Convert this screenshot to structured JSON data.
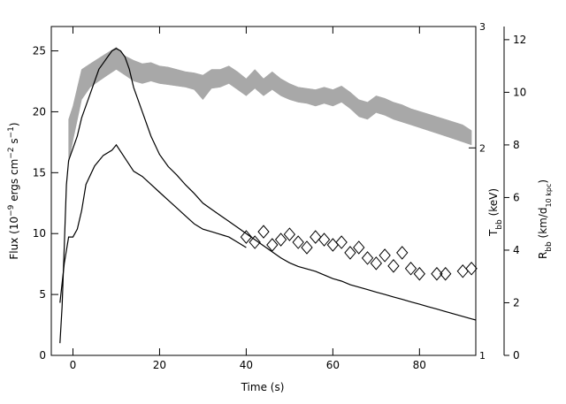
{
  "chart_data": {
    "type": "line",
    "title": "",
    "xlabel": "Time (s)",
    "ylabel": {
      "main": "Flux (10",
      "exp1": "−9",
      "mid1": " ergs cm",
      "exp2": "−2",
      "mid2": " s",
      "exp3": "−1",
      "end": ")"
    },
    "right_label_1": {
      "main": "T",
      "sub": "bb",
      "end": " (keV)"
    },
    "right_label_2": {
      "main": "R",
      "sub": "bb",
      "mid": " (km/d",
      "sub2": "10 kpc",
      "end": ")"
    },
    "xlim": [
      -5,
      93
    ],
    "ylim": [
      0,
      27
    ],
    "x_ticks": [
      0,
      20,
      40,
      60,
      80
    ],
    "y_ticks": [
      0,
      5,
      10,
      15,
      20,
      25
    ],
    "temp_axis": {
      "scale": "log",
      "range": [
        1,
        3
      ],
      "ticks": [
        1,
        2,
        3
      ]
    },
    "radius_axis": {
      "scale": "linear",
      "range": [
        0,
        12.5
      ],
      "ticks": [
        0,
        2,
        4,
        6,
        8,
        10,
        12
      ]
    },
    "series": [
      {
        "kind": "flux",
        "color": "#000000",
        "points": [
          [
            -3,
            1.0
          ],
          [
            -2.5,
            4
          ],
          [
            -2,
            9
          ],
          [
            -1.5,
            14
          ],
          [
            -1,
            16
          ],
          [
            0,
            17
          ],
          [
            1,
            18
          ],
          [
            2,
            19.5
          ],
          [
            3,
            20.5
          ],
          [
            4,
            21.5
          ],
          [
            5,
            22.5
          ],
          [
            6,
            23.5
          ],
          [
            7,
            24
          ],
          [
            8,
            24.5
          ],
          [
            9,
            25
          ],
          [
            10,
            25.2
          ],
          [
            11,
            25
          ],
          [
            12,
            24.5
          ],
          [
            13,
            23.5
          ],
          [
            14,
            22
          ],
          [
            15,
            21
          ],
          [
            16,
            20
          ],
          [
            18,
            18
          ],
          [
            20,
            16.5
          ],
          [
            22,
            15.5
          ],
          [
            24,
            14.8
          ],
          [
            26,
            14
          ],
          [
            28,
            13.3
          ],
          [
            30,
            12.5
          ],
          [
            32,
            12
          ],
          [
            34,
            11.5
          ],
          [
            36,
            11
          ],
          [
            38,
            10.5
          ],
          [
            40,
            10
          ],
          [
            42,
            9.5
          ],
          [
            44,
            9
          ],
          [
            46,
            8.5
          ],
          [
            48,
            8
          ],
          [
            50,
            7.6
          ],
          [
            52,
            7.3
          ],
          [
            54,
            7.1
          ],
          [
            56,
            6.9
          ],
          [
            58,
            6.6
          ],
          [
            60,
            6.3
          ],
          [
            62,
            6.1
          ],
          [
            64,
            5.8
          ],
          [
            66,
            5.6
          ],
          [
            68,
            5.4
          ],
          [
            70,
            5.2
          ],
          [
            72,
            5.0
          ],
          [
            74,
            4.8
          ],
          [
            76,
            4.6
          ],
          [
            78,
            4.4
          ],
          [
            80,
            4.2
          ],
          [
            82,
            4.0
          ],
          [
            84,
            3.8
          ],
          [
            86,
            3.6
          ],
          [
            88,
            3.4
          ],
          [
            90,
            3.2
          ],
          [
            92,
            3.0
          ],
          [
            93,
            2.9
          ]
        ]
      },
      {
        "kind": "radius",
        "color": "#000000",
        "points": [
          [
            -3,
            2
          ],
          [
            -2,
            3.5
          ],
          [
            -1,
            4.5
          ],
          [
            0,
            4.5
          ],
          [
            1,
            4.8
          ],
          [
            2,
            5.5
          ],
          [
            3,
            6.5
          ],
          [
            5,
            7.2
          ],
          [
            7,
            7.6
          ],
          [
            9,
            7.8
          ],
          [
            10,
            8
          ],
          [
            12,
            7.5
          ],
          [
            14,
            7
          ],
          [
            16,
            6.8
          ],
          [
            18,
            6.5
          ],
          [
            20,
            6.2
          ],
          [
            22,
            5.9
          ],
          [
            24,
            5.6
          ],
          [
            26,
            5.3
          ],
          [
            28,
            5.0
          ],
          [
            30,
            4.8
          ],
          [
            32,
            4.7
          ],
          [
            34,
            4.6
          ],
          [
            36,
            4.5
          ],
          [
            38,
            4.3
          ],
          [
            40,
            4.1
          ]
        ]
      },
      {
        "kind": "radius_diamonds",
        "color": "#000000",
        "points": [
          [
            40,
            4.5
          ],
          [
            42,
            4.3
          ],
          [
            44,
            4.7
          ],
          [
            46,
            4.2
          ],
          [
            48,
            4.4
          ],
          [
            50,
            4.6
          ],
          [
            52,
            4.3
          ],
          [
            54,
            4.1
          ],
          [
            56,
            4.5
          ],
          [
            58,
            4.4
          ],
          [
            60,
            4.2
          ],
          [
            62,
            4.3
          ],
          [
            64,
            3.9
          ],
          [
            66,
            4.1
          ],
          [
            68,
            3.7
          ],
          [
            70,
            3.5
          ],
          [
            72,
            3.8
          ],
          [
            74,
            3.4
          ],
          [
            76,
            3.9
          ],
          [
            78,
            3.3
          ],
          [
            80,
            3.1
          ],
          [
            84,
            3.1
          ],
          [
            86,
            3.1
          ],
          [
            90,
            3.2
          ],
          [
            92,
            3.3
          ]
        ]
      },
      {
        "kind": "temperature_band",
        "color": "#a8a8a8",
        "points": [
          [
            -1,
            1.9,
            2.2
          ],
          [
            0,
            2.05,
            2.3
          ],
          [
            2,
            2.35,
            2.6
          ],
          [
            4,
            2.45,
            2.65
          ],
          [
            6,
            2.5,
            2.7
          ],
          [
            8,
            2.55,
            2.75
          ],
          [
            10,
            2.6,
            2.8
          ],
          [
            12,
            2.55,
            2.72
          ],
          [
            14,
            2.5,
            2.68
          ],
          [
            16,
            2.48,
            2.65
          ],
          [
            18,
            2.5,
            2.66
          ],
          [
            20,
            2.48,
            2.63
          ],
          [
            22,
            2.47,
            2.62
          ],
          [
            24,
            2.46,
            2.6
          ],
          [
            26,
            2.45,
            2.58
          ],
          [
            28,
            2.43,
            2.57
          ],
          [
            30,
            2.35,
            2.55
          ],
          [
            32,
            2.44,
            2.6
          ],
          [
            34,
            2.45,
            2.6
          ],
          [
            36,
            2.48,
            2.63
          ],
          [
            38,
            2.43,
            2.58
          ],
          [
            40,
            2.38,
            2.52
          ],
          [
            42,
            2.44,
            2.6
          ],
          [
            44,
            2.38,
            2.52
          ],
          [
            46,
            2.43,
            2.58
          ],
          [
            48,
            2.38,
            2.52
          ],
          [
            50,
            2.35,
            2.48
          ],
          [
            52,
            2.33,
            2.45
          ],
          [
            54,
            2.32,
            2.44
          ],
          [
            56,
            2.3,
            2.43
          ],
          [
            58,
            2.32,
            2.45
          ],
          [
            60,
            2.3,
            2.43
          ],
          [
            62,
            2.33,
            2.46
          ],
          [
            64,
            2.28,
            2.41
          ],
          [
            66,
            2.22,
            2.35
          ],
          [
            68,
            2.2,
            2.33
          ],
          [
            70,
            2.25,
            2.38
          ],
          [
            72,
            2.23,
            2.36
          ],
          [
            74,
            2.2,
            2.33
          ],
          [
            76,
            2.18,
            2.31
          ],
          [
            78,
            2.16,
            2.28
          ],
          [
            80,
            2.14,
            2.26
          ],
          [
            82,
            2.12,
            2.24
          ],
          [
            84,
            2.1,
            2.22
          ],
          [
            86,
            2.08,
            2.2
          ],
          [
            88,
            2.06,
            2.18
          ],
          [
            90,
            2.04,
            2.16
          ],
          [
            92,
            2.02,
            2.12
          ]
        ]
      }
    ]
  }
}
